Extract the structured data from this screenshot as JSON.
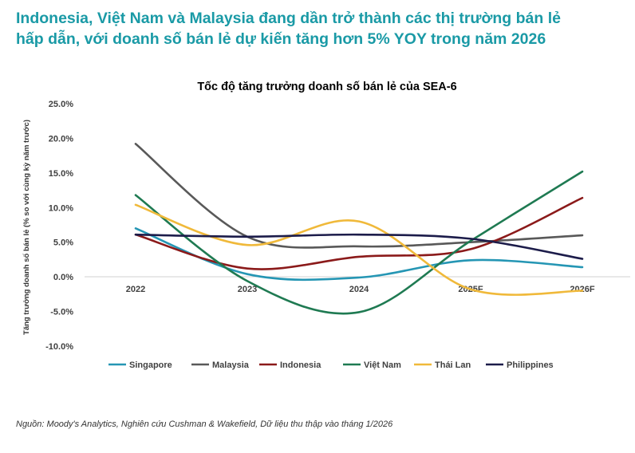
{
  "headline": {
    "line1": "Indonesia, Việt Nam và Malaysia đang dần trở thành các thị trường bán lẻ",
    "line2": "hấp dẫn, với doanh số bán lẻ dự kiến tăng hơn 5% YOY trong năm 2026"
  },
  "source": "Nguồn: Moody's Analytics, Nghiên cứu Cushman & Wakefield, Dữ liệu thu thập vào tháng 1/2026",
  "chart_data": {
    "type": "line",
    "title": "Tốc độ tăng trưởng doanh số bán lẻ của SEA-6",
    "xlabel": "",
    "ylabel": "Tăng trưởng doanh số bán lẻ (% so với cùng kỳ năm trước)",
    "categories": [
      "2022",
      "2023",
      "2024",
      "2025F",
      "2026F"
    ],
    "yticks": [
      "25.0%",
      "20.0%",
      "15.0%",
      "10.0%",
      "5.0%",
      "0.0%",
      "-5.0%",
      "-10.0%"
    ],
    "ylim": [
      -10,
      25
    ],
    "grid": false,
    "legend_position": "bottom",
    "series": [
      {
        "name": "Singapore",
        "color": "#2596b4",
        "values": [
          7.0,
          0.4,
          -0.1,
          2.4,
          1.4
        ]
      },
      {
        "name": "Malaysia",
        "color": "#595959",
        "values": [
          19.2,
          5.8,
          4.4,
          5.0,
          6.0
        ]
      },
      {
        "name": "Indonesia",
        "color": "#8b1a1a",
        "values": [
          6.1,
          1.2,
          2.9,
          4.0,
          11.4
        ]
      },
      {
        "name": "Việt Nam",
        "color": "#1f7a52",
        "values": [
          11.8,
          -0.6,
          -5.1,
          5.2,
          15.2
        ]
      },
      {
        "name": "Thái Lan",
        "color": "#f0b93a",
        "values": [
          10.4,
          4.6,
          8.0,
          -1.8,
          -2.0
        ]
      },
      {
        "name": "Philippines",
        "color": "#1c1c4a",
        "values": [
          6.1,
          5.8,
          6.1,
          5.5,
          2.6
        ]
      }
    ]
  }
}
